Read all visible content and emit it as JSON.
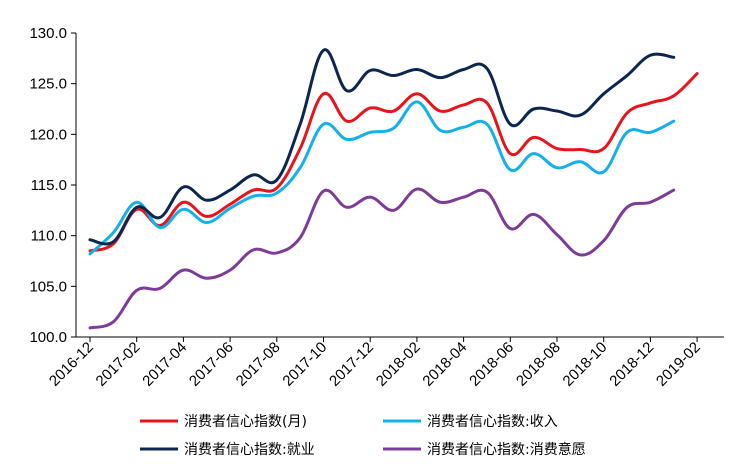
{
  "chart_data": {
    "type": "line",
    "ylim": [
      100,
      130
    ],
    "y_ticks": [
      "100.0",
      "105.0",
      "110.0",
      "115.0",
      "120.0",
      "125.0",
      "130.0"
    ],
    "x_tick_labels": [
      "2016-12",
      "2017-02",
      "2017-04",
      "2017-06",
      "2017-08",
      "2017-10",
      "2017-12",
      "2018-02",
      "2018-04",
      "2018-06",
      "2018-08",
      "2018-10",
      "2018-12",
      "2019-02"
    ],
    "x": [
      "2016-12",
      "2017-01",
      "2017-02",
      "2017-03",
      "2017-04",
      "2017-05",
      "2017-06",
      "2017-07",
      "2017-08",
      "2017-09",
      "2017-10",
      "2017-11",
      "2017-12",
      "2018-01",
      "2018-02",
      "2018-03",
      "2018-04",
      "2018-05",
      "2018-06",
      "2018-07",
      "2018-08",
      "2018-09",
      "2018-10",
      "2018-11",
      "2018-12",
      "2019-01",
      "2019-02"
    ],
    "grid": false,
    "legend_position": "bottom",
    "series": [
      {
        "name": "消费者信心指数(月)",
        "color": "#e8141c",
        "values": [
          108.5,
          109.2,
          112.6,
          111.0,
          113.3,
          111.9,
          113.1,
          114.5,
          114.7,
          118.6,
          124.0,
          121.3,
          122.6,
          122.3,
          124.0,
          122.3,
          122.9,
          123.1,
          118.1,
          119.7,
          118.6,
          118.5,
          118.6,
          122.1,
          123.1,
          123.8,
          126.0
        ]
      },
      {
        "name": "消费者信心指数:收入",
        "color": "#13b0ea",
        "values": [
          108.2,
          110.3,
          113.3,
          110.8,
          112.6,
          111.3,
          112.7,
          113.9,
          114.2,
          116.7,
          121.0,
          119.5,
          120.2,
          120.6,
          123.2,
          120.4,
          120.7,
          121.0,
          116.5,
          118.1,
          116.7,
          117.3,
          116.3,
          120.2,
          120.2,
          121.3,
          null
        ]
      },
      {
        "name": "消费者信心指数:就业",
        "color": "#0c2651",
        "values": [
          109.6,
          109.4,
          112.8,
          111.8,
          114.8,
          113.5,
          114.5,
          116.0,
          115.5,
          121.0,
          128.3,
          124.3,
          126.3,
          125.8,
          126.4,
          125.6,
          126.4,
          126.5,
          121.0,
          122.5,
          122.3,
          121.9,
          124.0,
          125.8,
          127.8,
          127.6,
          null
        ]
      },
      {
        "name": "消费者信心指数:消费意愿",
        "color": "#7c3c98",
        "values": [
          100.9,
          101.5,
          104.6,
          104.8,
          106.6,
          105.8,
          106.6,
          108.6,
          108.3,
          109.8,
          114.4,
          112.8,
          113.8,
          112.5,
          114.6,
          113.3,
          113.8,
          114.3,
          110.7,
          112.1,
          110.1,
          108.1,
          109.5,
          112.8,
          113.3,
          114.5,
          null
        ]
      }
    ]
  }
}
